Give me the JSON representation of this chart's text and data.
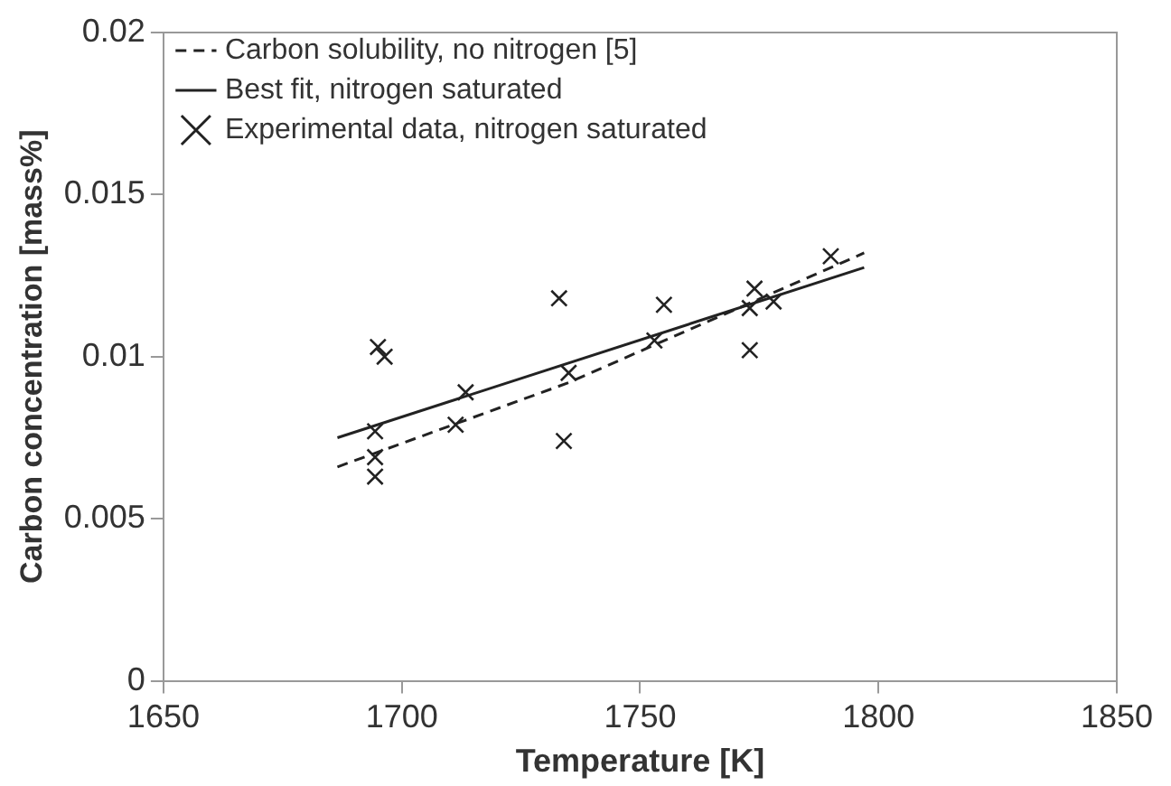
{
  "chart_data": {
    "type": "scatter",
    "xlabel": "Temperature [K]",
    "ylabel": "Carbon concentration [mass%]",
    "xlim": [
      1650,
      1850
    ],
    "xticks": [
      1650,
      1700,
      1750,
      1800,
      1850
    ],
    "ylim": [
      0,
      0.02
    ],
    "yticks": [
      0,
      0.005,
      0.01,
      0.015,
      0.02
    ],
    "grid": false,
    "legend": "top left",
    "series": [
      {
        "name": "Carbon solubility, no nitrogen [5]",
        "type": "line",
        "color": "#222222",
        "line_style": "dashed",
        "marker": "none",
        "x": [
          1686.5,
          1735,
          1797
        ],
        "values": [
          0.0066,
          0.0092,
          0.0132
        ]
      },
      {
        "name": "Best fit, nitrogen saturated",
        "type": "line",
        "color": "#222222",
        "line_style": "solid",
        "marker": "none",
        "x": [
          1686.5,
          1797
        ],
        "values": [
          0.0075,
          0.01275
        ]
      },
      {
        "name": "Experimental data, nitrogen saturated",
        "type": "scatter",
        "color": "#222222",
        "marker": "cross",
        "x": [
          1695,
          1696.4,
          1694.4,
          1694.4,
          1694.4,
          1713.4,
          1711.3,
          1733,
          1734,
          1735,
          1755,
          1753,
          1774,
          1773,
          1773,
          1778,
          1790
        ],
        "values": [
          0.0103,
          0.01,
          0.0077,
          0.0069,
          0.0063,
          0.0089,
          0.0079,
          0.0118,
          0.0074,
          0.0095,
          0.0116,
          0.0105,
          0.0121,
          0.0115,
          0.0102,
          0.0117,
          0.0131
        ]
      }
    ]
  }
}
